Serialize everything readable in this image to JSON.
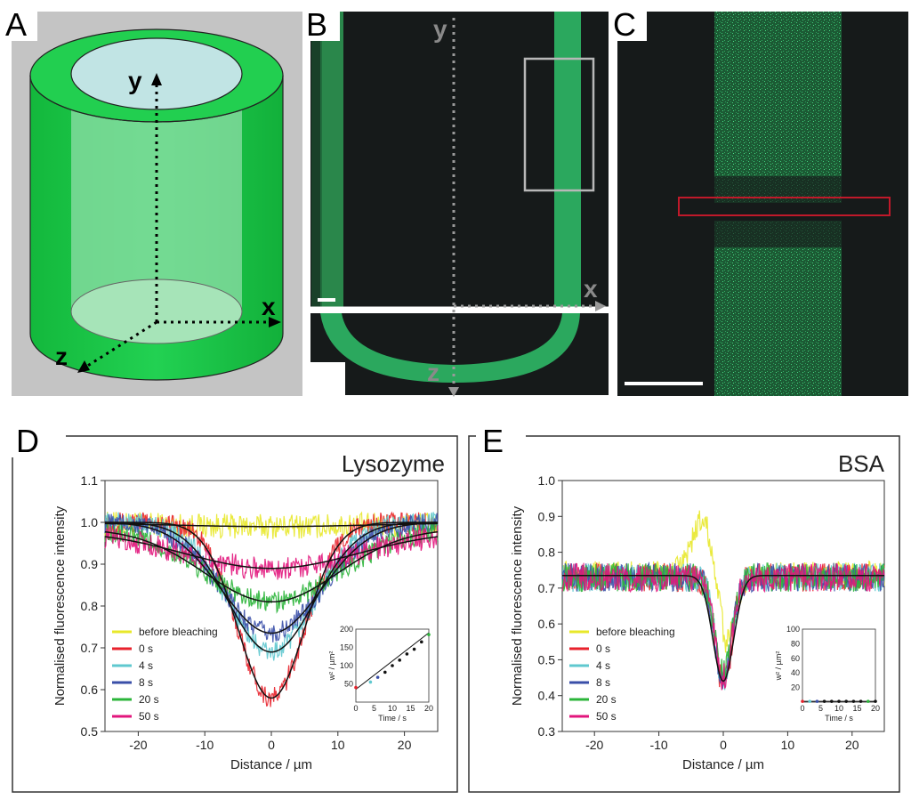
{
  "panel_labels": {
    "a": "A",
    "b": "B",
    "c": "C",
    "d": "D",
    "e": "E"
  },
  "panel_a": {
    "axis_y": "y",
    "axis_x": "x",
    "axis_z": "z"
  },
  "panel_b": {
    "axis_y": "y",
    "axis_x": "x",
    "axis_z": "z"
  },
  "colors": {
    "before bleaching": "#e8e82a",
    "0 s": "#e8222c",
    "4 s": "#5fc8cf",
    "8 s": "#3a4fa8",
    "20 s": "#2bb53a",
    "50 s": "#e2157c",
    "tube_green": "#1fc94a",
    "micrograph_green": "#2eb866"
  },
  "chart_data": [
    {
      "type": "line",
      "panel": "D",
      "title": "Lysozyme",
      "xlabel": "Distance / µm",
      "ylabel": "Normalised fluorescence intensity",
      "xlim": [
        -25,
        25
      ],
      "ylim": [
        0.5,
        1.1
      ],
      "xticks": [
        -20,
        -10,
        0,
        10,
        20
      ],
      "yticks": [
        0.5,
        0.6,
        0.7,
        0.8,
        0.9,
        1.0,
        1.1
      ],
      "xtick_labels": [
        "-20",
        "-10",
        "0",
        "10",
        "20"
      ],
      "ytick_labels": [
        "0.5",
        "0.6",
        "0.7",
        "0.8",
        "0.9",
        "1.0",
        "1.1"
      ],
      "legend": [
        "before bleaching",
        "0 s",
        "4 s",
        "8 s",
        "20 s",
        "50 s"
      ],
      "series": [
        {
          "name": "before bleaching",
          "baseline": 1.0,
          "min": 0.99,
          "width_um": 16,
          "noise": 0.03
        },
        {
          "name": "0 s",
          "baseline": 1.0,
          "min": 0.58,
          "width_um": 5,
          "noise": 0.025
        },
        {
          "name": "4 s",
          "baseline": 1.0,
          "min": 0.69,
          "width_um": 6.5,
          "noise": 0.025
        },
        {
          "name": "8 s",
          "baseline": 1.0,
          "min": 0.735,
          "width_um": 7.5,
          "noise": 0.025
        },
        {
          "name": "20 s",
          "baseline": 0.985,
          "min": 0.81,
          "width_um": 10,
          "noise": 0.025
        },
        {
          "name": "50 s",
          "baseline": 0.98,
          "min": 0.89,
          "width_um": 13,
          "noise": 0.028
        }
      ],
      "inset": {
        "xlabel": "Time / s",
        "ylabel": "w² / µm²",
        "xlim": [
          0,
          20
        ],
        "ylim": [
          0,
          200
        ],
        "xticks": [
          0,
          5,
          10,
          15,
          20
        ],
        "yticks": [
          50,
          100,
          150,
          200
        ],
        "xtick_labels": [
          "0",
          "5",
          "10",
          "15",
          "20"
        ],
        "ytick_labels": [
          "50",
          "100",
          "150",
          "200"
        ],
        "points": [
          [
            0,
            40
          ],
          [
            4,
            55
          ],
          [
            6,
            68
          ],
          [
            8,
            82
          ],
          [
            10,
            100
          ],
          [
            12,
            115
          ],
          [
            14,
            132
          ],
          [
            16,
            145
          ],
          [
            18,
            165
          ],
          [
            20,
            185
          ]
        ],
        "fit": [
          [
            0,
            35
          ],
          [
            20,
            190
          ]
        ]
      }
    },
    {
      "type": "line",
      "panel": "E",
      "title": "BSA",
      "xlabel": "Distance / µm",
      "ylabel": "Normalised fluorescence intensity",
      "xlim": [
        -25,
        25
      ],
      "ylim": [
        0.3,
        1.0
      ],
      "xticks": [
        -20,
        -10,
        0,
        10,
        20
      ],
      "yticks": [
        0.3,
        0.4,
        0.5,
        0.6,
        0.7,
        0.8,
        0.9,
        1.0
      ],
      "xtick_labels": [
        "-20",
        "-10",
        "0",
        "10",
        "20"
      ],
      "ytick_labels": [
        "0.3",
        "0.4",
        "0.5",
        "0.6",
        "0.7",
        "0.8",
        "0.9",
        "1.0"
      ],
      "legend": [
        "before bleaching",
        "0 s",
        "4 s",
        "8 s",
        "20 s",
        "50 s"
      ],
      "series": [
        {
          "name": "before bleaching",
          "baseline": 0.74,
          "bump": 0.93,
          "min": 0.52,
          "width_um": 1.6,
          "noise": 0.035
        },
        {
          "name": "0 s",
          "baseline": 0.73,
          "min": 0.43,
          "width_um": 1.3,
          "noise": 0.04
        },
        {
          "name": "4 s",
          "baseline": 0.73,
          "min": 0.45,
          "width_um": 1.3,
          "noise": 0.04
        },
        {
          "name": "8 s",
          "baseline": 0.73,
          "min": 0.44,
          "width_um": 1.3,
          "noise": 0.04
        },
        {
          "name": "20 s",
          "baseline": 0.73,
          "min": 0.46,
          "width_um": 1.3,
          "noise": 0.04
        },
        {
          "name": "50 s",
          "baseline": 0.73,
          "min": 0.45,
          "width_um": 1.3,
          "noise": 0.04
        }
      ],
      "fit_curve": {
        "baseline": 0.735,
        "min": 0.44,
        "width_um": 1.6
      },
      "inset": {
        "xlabel": "Time / s",
        "ylabel": "w² / µm²",
        "xlim": [
          0,
          20
        ],
        "ylim": [
          0,
          100
        ],
        "xticks": [
          0,
          5,
          10,
          15,
          20
        ],
        "yticks": [
          20,
          40,
          60,
          80,
          100
        ],
        "xtick_labels": [
          "0",
          "5",
          "10",
          "15",
          "20"
        ],
        "ytick_labels": [
          "20",
          "40",
          "60",
          "80",
          "100"
        ],
        "points": [
          [
            0,
            1
          ],
          [
            2,
            1
          ],
          [
            4,
            1
          ],
          [
            6,
            1
          ],
          [
            8,
            1
          ],
          [
            10,
            1
          ],
          [
            12,
            1
          ],
          [
            14,
            1
          ],
          [
            16,
            1
          ],
          [
            18,
            1
          ],
          [
            20,
            1
          ]
        ]
      }
    }
  ]
}
